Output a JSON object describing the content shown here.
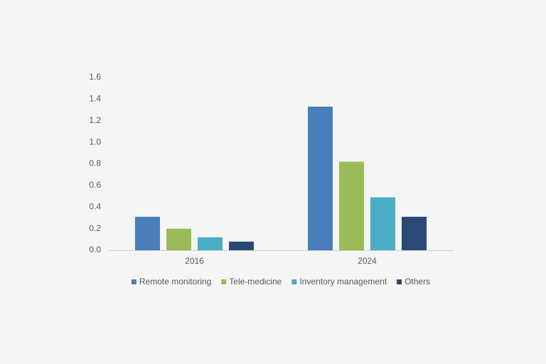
{
  "chart_data": {
    "type": "bar",
    "categories": [
      "2016",
      "2024"
    ],
    "series": [
      {
        "name": "Remote monitoring",
        "color": "#4a7ebb",
        "values": [
          0.31,
          1.33
        ]
      },
      {
        "name": "Tele-medicine",
        "color": "#9bbb59",
        "values": [
          0.2,
          0.82
        ]
      },
      {
        "name": "Inventory management",
        "color": "#4bacc6",
        "values": [
          0.12,
          0.49
        ]
      },
      {
        "name": "Others",
        "color": "#2a4a74",
        "values": [
          0.08,
          0.31
        ]
      }
    ],
    "ylim": [
      0,
      1.6
    ],
    "yticks": [
      {
        "value": 0,
        "label": "0.0"
      },
      0.2,
      0.4,
      0.6,
      0.8,
      {
        "value": 1,
        "label": "1.0"
      },
      1.2,
      1.4,
      1.6
    ],
    "grid": false,
    "legend": "bottom"
  }
}
